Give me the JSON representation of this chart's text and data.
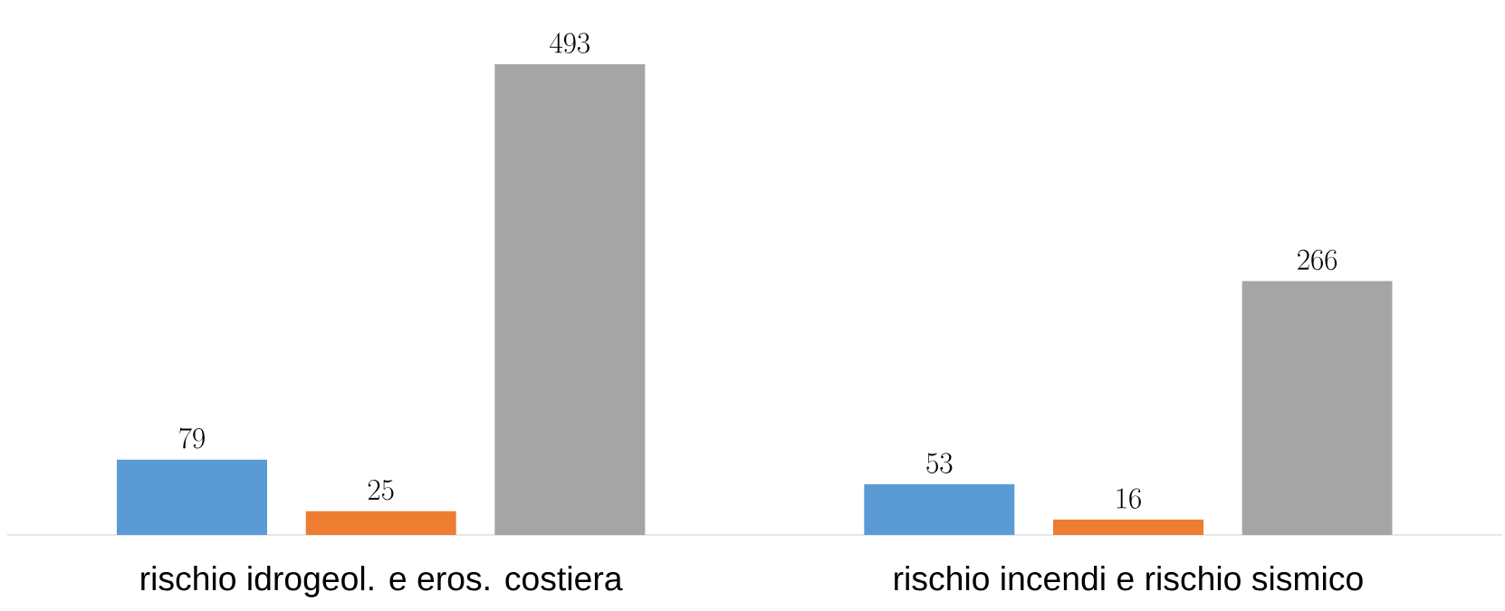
{
  "chart_data": {
    "type": "bar",
    "categories": [
      "rischio idrogeol. e eros. costiera",
      "rischio incendi e rischio sismico"
    ],
    "series": [
      {
        "color": "#5b9bd5",
        "values": [
          79,
          53
        ]
      },
      {
        "color": "#ed7d31",
        "values": [
          25,
          16
        ]
      },
      {
        "color": "#a5a5a5",
        "values": [
          493,
          266
        ]
      }
    ],
    "data_labels": true
  }
}
